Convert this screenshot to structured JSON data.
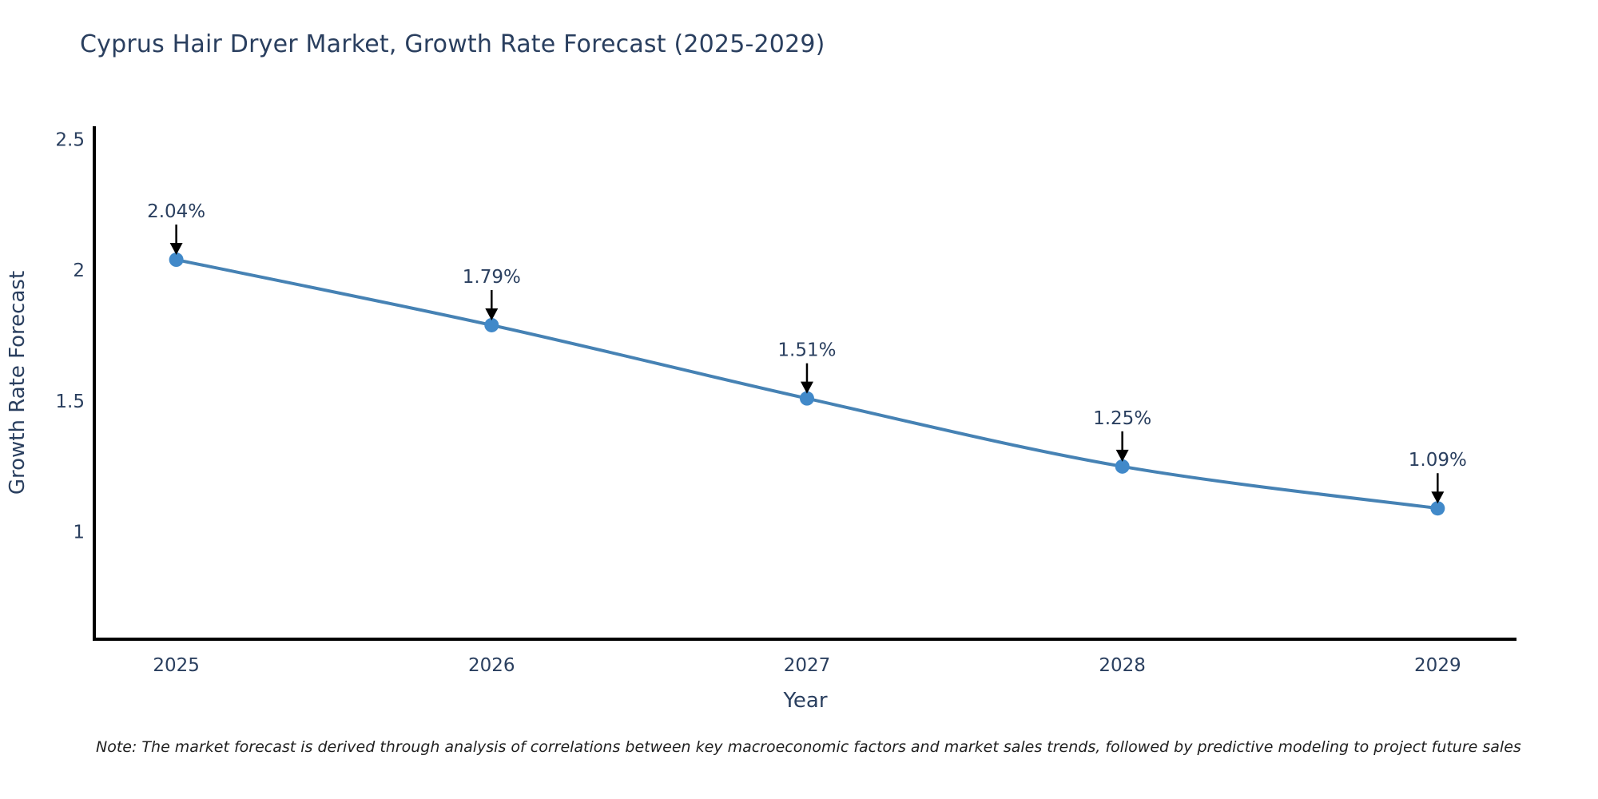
{
  "title": "Cyprus Hair Dryer Market, Growth Rate Forecast (2025-2029)",
  "note": {
    "text": "Note: The market forecast is derived through analysis of correlations between key macroeconomic factors and market sales trends, followed by predictive modeling to project future sales"
  },
  "chart_data": {
    "type": "line",
    "title": "Cyprus Hair Dryer Market, Growth Rate Forecast (2025-2029)",
    "xlabel": "Year",
    "ylabel": "Growth Rate Forecast",
    "x": [
      2025,
      2026,
      2027,
      2028,
      2029
    ],
    "values": [
      2.04,
      1.79,
      1.51,
      1.25,
      1.09
    ],
    "point_labels": [
      "2.04%",
      "1.79%",
      "1.51%",
      "1.25%",
      "1.09%"
    ],
    "xtick_labels": [
      "2025",
      "2026",
      "2027",
      "2028",
      "2029"
    ],
    "ytick_values": [
      1,
      1.5,
      2,
      2.5
    ],
    "ytick_labels": [
      "1",
      "1.5",
      "2",
      "2.5"
    ],
    "xlim": [
      2024.74,
      2029.25
    ],
    "ylim": [
      0.59,
      2.55
    ],
    "grid": false,
    "legend": "none",
    "line_color": "#4682b4",
    "marker_color": "#4189c9",
    "axis_color": "#000000",
    "text_color": "#2a3f5f",
    "annotation_arrow_color": "#000000",
    "background": "#ffffff"
  }
}
